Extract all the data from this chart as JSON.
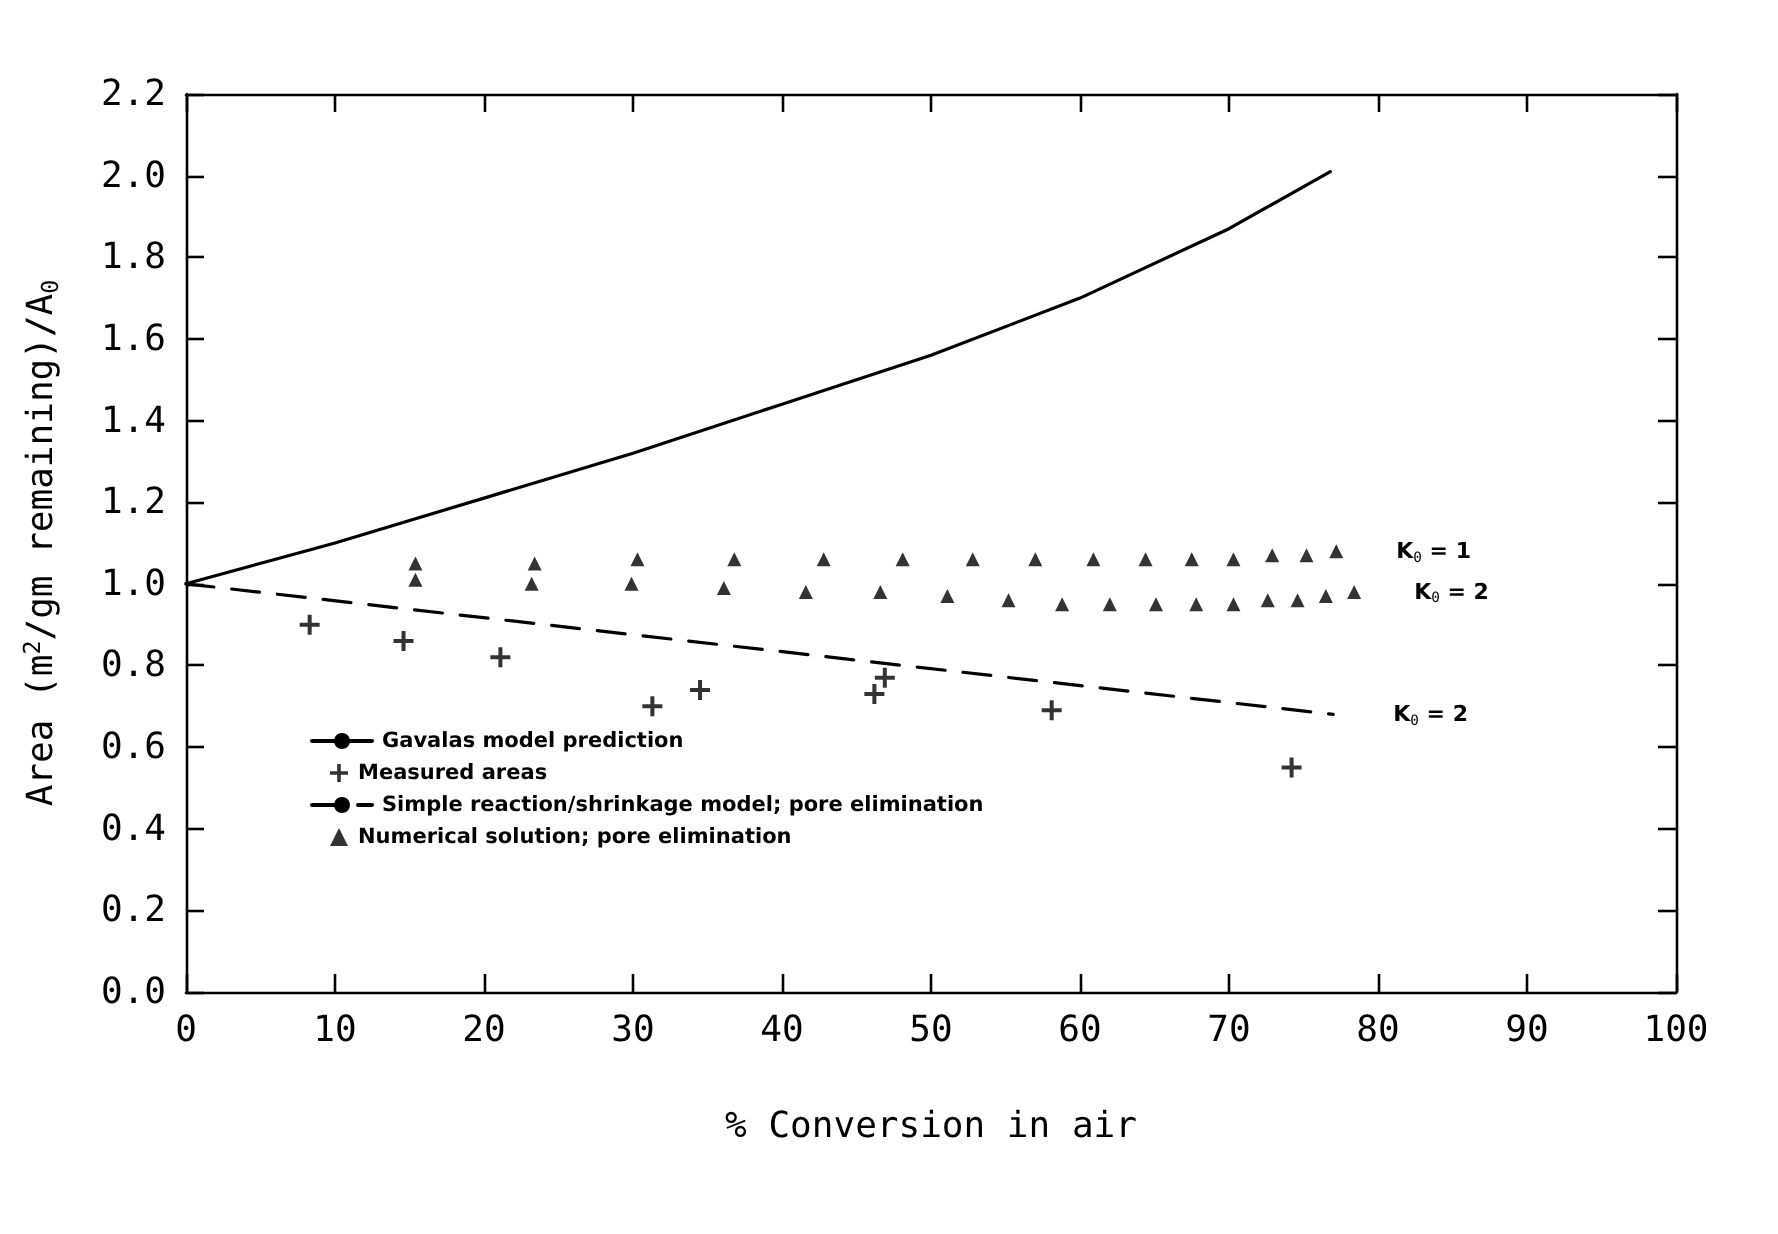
{
  "chart_data": {
    "type": "scatter",
    "xlabel": "% Conversion in air",
    "ylabel": "Area (m$^{2}$/gm remaining)/A$_{0}$",
    "xlim": [
      0,
      100
    ],
    "xticks": [
      0,
      10,
      20,
      30,
      40,
      50,
      60,
      70,
      80,
      90,
      100
    ],
    "ylim": [
      0,
      2.2
    ],
    "yticks": [
      {
        "value": 0,
        "label": "0.0"
      },
      0.2,
      0.4,
      0.6,
      0.8,
      {
        "value": 1,
        "label": "1.0"
      },
      1.2,
      1.4,
      1.6,
      1.8,
      {
        "value": 2,
        "label": "2.0"
      },
      2.2
    ],
    "grid": false,
    "legend": "bottom left",
    "series": [
      {
        "name": "Gavalas model prediction",
        "type": "line",
        "color": "#000000",
        "marker": "none",
        "line_style": "solid",
        "x": [
          0,
          10,
          20,
          30,
          40,
          50,
          60,
          70,
          76.8
        ],
        "values": [
          1.0,
          1.1,
          1.21,
          1.32,
          1.44,
          1.56,
          1.7,
          1.87,
          2.01
        ]
      },
      {
        "name": "Measured areas",
        "color": "#000000",
        "marker": "cross",
        "x": [
          8.3,
          14.6,
          21.1,
          31.3,
          34.5,
          46.2,
          46.9,
          58.1,
          74.2
        ],
        "values": [
          0.9,
          0.86,
          0.82,
          0.7,
          0.74,
          0.73,
          0.77,
          0.69,
          0.55
        ]
      },
      {
        "name": "Simple reaction/shrinkage model; pore elimination",
        "type": "line",
        "color": "#000000",
        "marker": "none",
        "line_style": "dashed",
        "x": [
          0,
          77
        ],
        "values": [
          1.0,
          0.68
        ]
      },
      {
        "name": "Numerical solution; pore elimination",
        "color": "#000000",
        "marker": "triangle",
        "x": [
          15.4,
          23.4,
          30.3,
          36.8,
          42.8,
          48.1,
          52.8,
          57.0,
          60.9,
          64.4,
          67.5,
          70.3,
          72.9,
          75.2,
          77.2,
          15.4,
          23.2,
          29.9,
          36.1,
          41.6,
          46.6,
          51.1,
          55.2,
          58.8,
          62.0,
          65.1,
          67.8,
          70.3,
          72.6,
          74.6,
          76.5,
          78.4
        ],
        "values": [
          1.05,
          1.05,
          1.06,
          1.06,
          1.06,
          1.06,
          1.06,
          1.06,
          1.06,
          1.06,
          1.06,
          1.06,
          1.07,
          1.07,
          1.08,
          1.01,
          1.0,
          1.0,
          0.99,
          0.98,
          0.98,
          0.97,
          0.96,
          0.95,
          0.95,
          0.95,
          0.95,
          0.95,
          0.96,
          0.96,
          0.97,
          0.98
        ]
      }
    ],
    "annotations": [
      {
        "text": "K$_{0}$ = 1",
        "x": 77.2,
        "y": 1.08
      },
      {
        "text": "K$_{0}$ = 2",
        "x": 78.4,
        "y": 0.98
      },
      {
        "text": "K$_{0}$ = 2",
        "x": 77,
        "y": 0.68
      }
    ]
  }
}
